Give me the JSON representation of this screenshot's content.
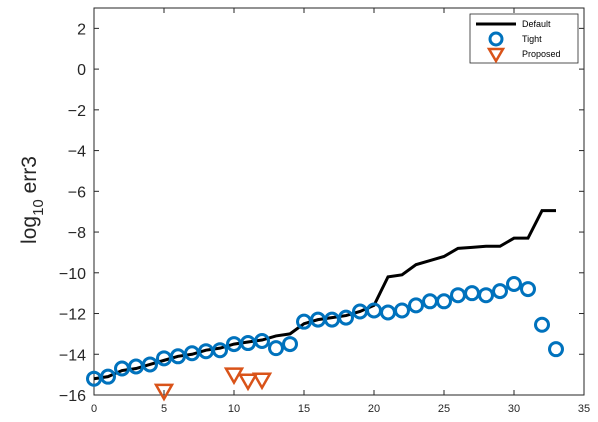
{
  "chart_data": {
    "type": "line",
    "title": "",
    "xlabel": "",
    "ylabel": {
      "base": "log",
      "subscript": "10",
      "rest": " err3"
    },
    "xlim": [
      0,
      35
    ],
    "ylim": [
      -16,
      3
    ],
    "xticks": [
      "0",
      "5",
      "10",
      "15",
      "20",
      "25",
      "30",
      "35"
    ],
    "yticks": [
      "2",
      "0",
      "−2",
      "−4",
      "−6",
      "−8",
      "−10",
      "−12",
      "−14",
      "−16"
    ],
    "grid": false,
    "legend_position": "top-right",
    "series": [
      {
        "name": "Default",
        "style": "line",
        "color": "#000000",
        "x": [
          0,
          1,
          2,
          3,
          4,
          5,
          6,
          7,
          8,
          9,
          10,
          11,
          12,
          13,
          14,
          15,
          16,
          17,
          18,
          19,
          20,
          21,
          22,
          23,
          24,
          25,
          26,
          27,
          28,
          29,
          30,
          31,
          32,
          33
        ],
        "y": [
          -15.2,
          -15.1,
          -14.8,
          -14.7,
          -14.5,
          -14.3,
          -14.1,
          -14.0,
          -13.8,
          -13.7,
          -13.5,
          -13.4,
          -13.3,
          -13.1,
          -13.0,
          -12.5,
          -12.3,
          -12.2,
          -12.1,
          -11.9,
          -11.6,
          -10.2,
          -10.1,
          -9.6,
          -9.4,
          -9.2,
          -8.8,
          -8.75,
          -8.7,
          -8.7,
          -8.3,
          -8.3,
          -6.95,
          -6.95
        ]
      },
      {
        "name": "Tight",
        "style": "circle",
        "color": "#0072BD",
        "x": [
          0,
          1,
          2,
          3,
          4,
          5,
          6,
          7,
          8,
          9,
          10,
          11,
          12,
          13,
          14,
          15,
          16,
          17,
          18,
          19,
          20,
          21,
          22,
          23,
          24,
          25,
          26,
          27,
          28,
          29,
          30,
          31,
          32,
          33
        ],
        "y": [
          -15.2,
          -15.1,
          -14.7,
          -14.6,
          -14.5,
          -14.2,
          -14.1,
          -13.95,
          -13.85,
          -13.8,
          -13.5,
          -13.45,
          -13.35,
          -13.7,
          -13.5,
          -12.4,
          -12.3,
          -12.3,
          -12.2,
          -11.9,
          -11.85,
          -11.95,
          -11.85,
          -11.6,
          -11.4,
          -11.4,
          -11.1,
          -11.0,
          -11.1,
          -10.9,
          -10.55,
          -10.8,
          -12.55,
          -13.75
        ]
      },
      {
        "name": "Proposed",
        "style": "triangle-down",
        "color": "#D95319",
        "x": [
          5,
          10,
          11,
          12
        ],
        "y": [
          -15.8,
          -15.0,
          -15.3,
          -15.25
        ]
      }
    ]
  }
}
